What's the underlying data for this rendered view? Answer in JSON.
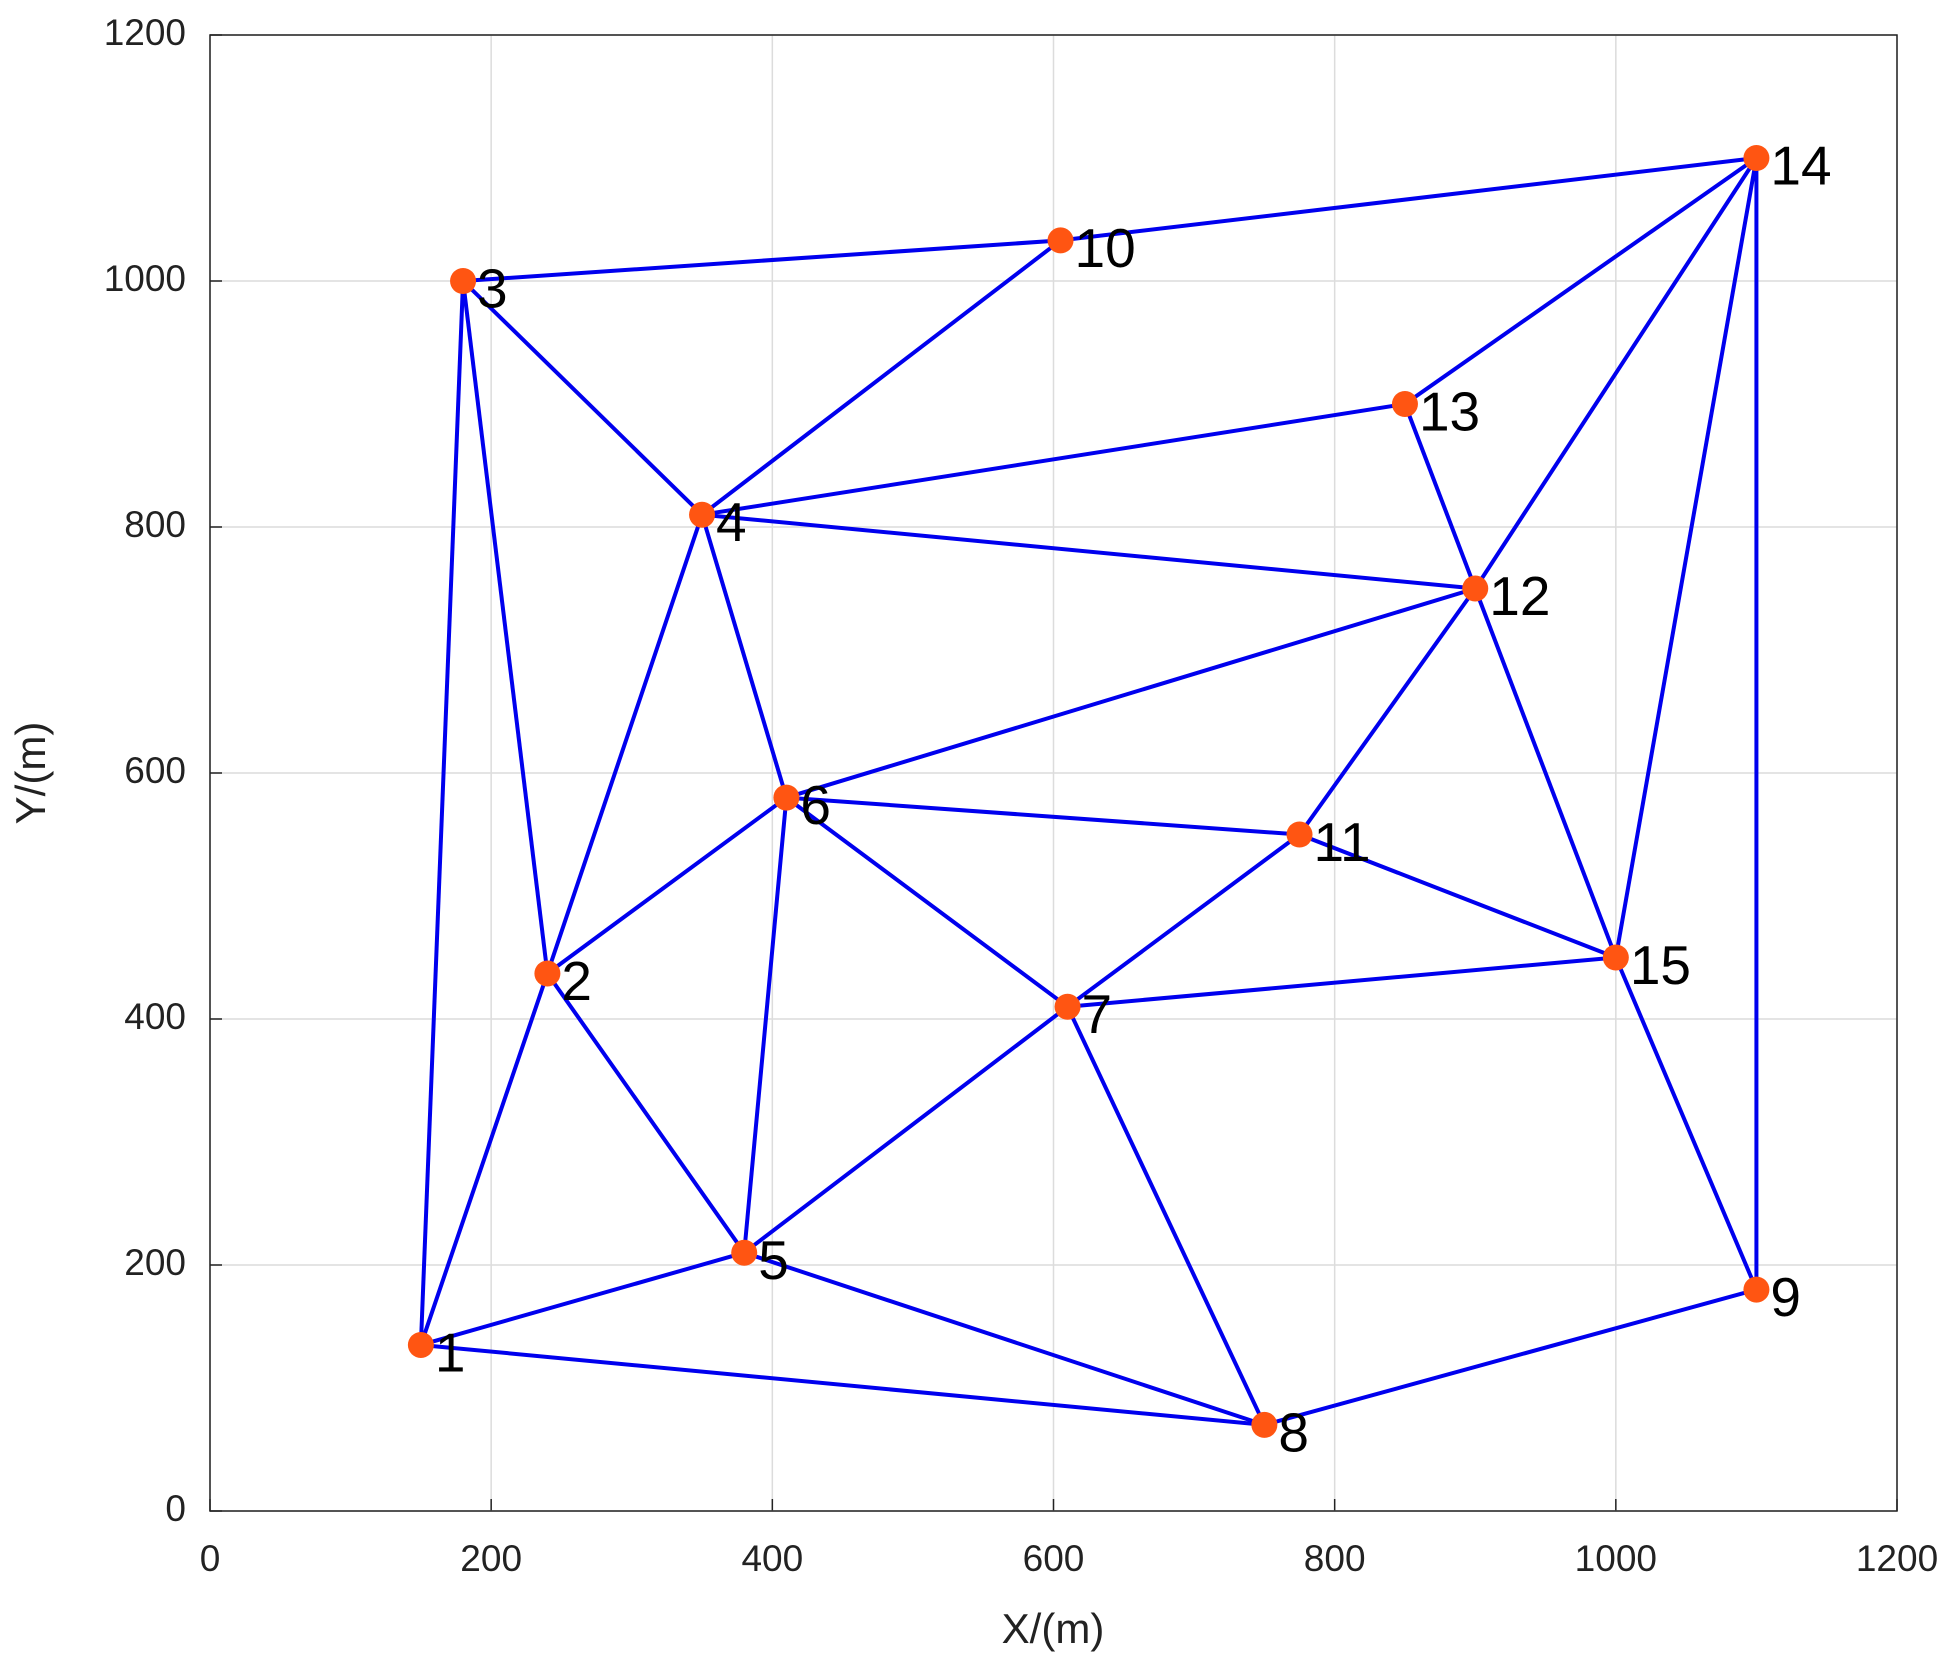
{
  "chart_data": {
    "type": "network",
    "xlabel": "X/(m)",
    "ylabel": "Y/(m)",
    "labels": [
      "1",
      "2",
      "3",
      "4",
      "5",
      "6",
      "7",
      "8",
      "9",
      "10",
      "11",
      "12",
      "13",
      "14",
      "15"
    ],
    "x": [
      150,
      240,
      180,
      350,
      380,
      410,
      610,
      750,
      1100,
      605,
      775,
      900,
      850,
      1100,
      1000
    ],
    "y": [
      135,
      437,
      1000,
      810,
      210,
      580,
      410,
      70,
      180,
      1033,
      550,
      750,
      900,
      1100,
      450
    ],
    "edges": [
      [
        2,
        9
      ],
      [
        9,
        13
      ],
      [
        2,
        3
      ],
      [
        3,
        9
      ],
      [
        2,
        0
      ],
      [
        2,
        1
      ],
      [
        3,
        12
      ],
      [
        3,
        11
      ],
      [
        3,
        1
      ],
      [
        3,
        5
      ],
      [
        12,
        13
      ],
      [
        12,
        11
      ],
      [
        11,
        13
      ],
      [
        11,
        5
      ],
      [
        11,
        10
      ],
      [
        11,
        14
      ],
      [
        13,
        14
      ],
      [
        13,
        8
      ],
      [
        5,
        10
      ],
      [
        5,
        1
      ],
      [
        5,
        4
      ],
      [
        5,
        6
      ],
      [
        10,
        6
      ],
      [
        10,
        14
      ],
      [
        6,
        14
      ],
      [
        1,
        0
      ],
      [
        1,
        4
      ],
      [
        6,
        4
      ],
      [
        6,
        7
      ],
      [
        4,
        0
      ],
      [
        4,
        7
      ],
      [
        0,
        7
      ],
      [
        7,
        8
      ],
      [
        14,
        8
      ]
    ],
    "edge_color": "#0000ee",
    "node_color": "#ff5512",
    "xlim": [
      0,
      1200
    ],
    "ylim": [
      0,
      1200
    ],
    "xticks": [
      0,
      200,
      400,
      600,
      800,
      1000,
      1200
    ],
    "yticks": [
      0,
      200,
      400,
      600,
      800,
      1000,
      1200
    ],
    "grid": true
  }
}
